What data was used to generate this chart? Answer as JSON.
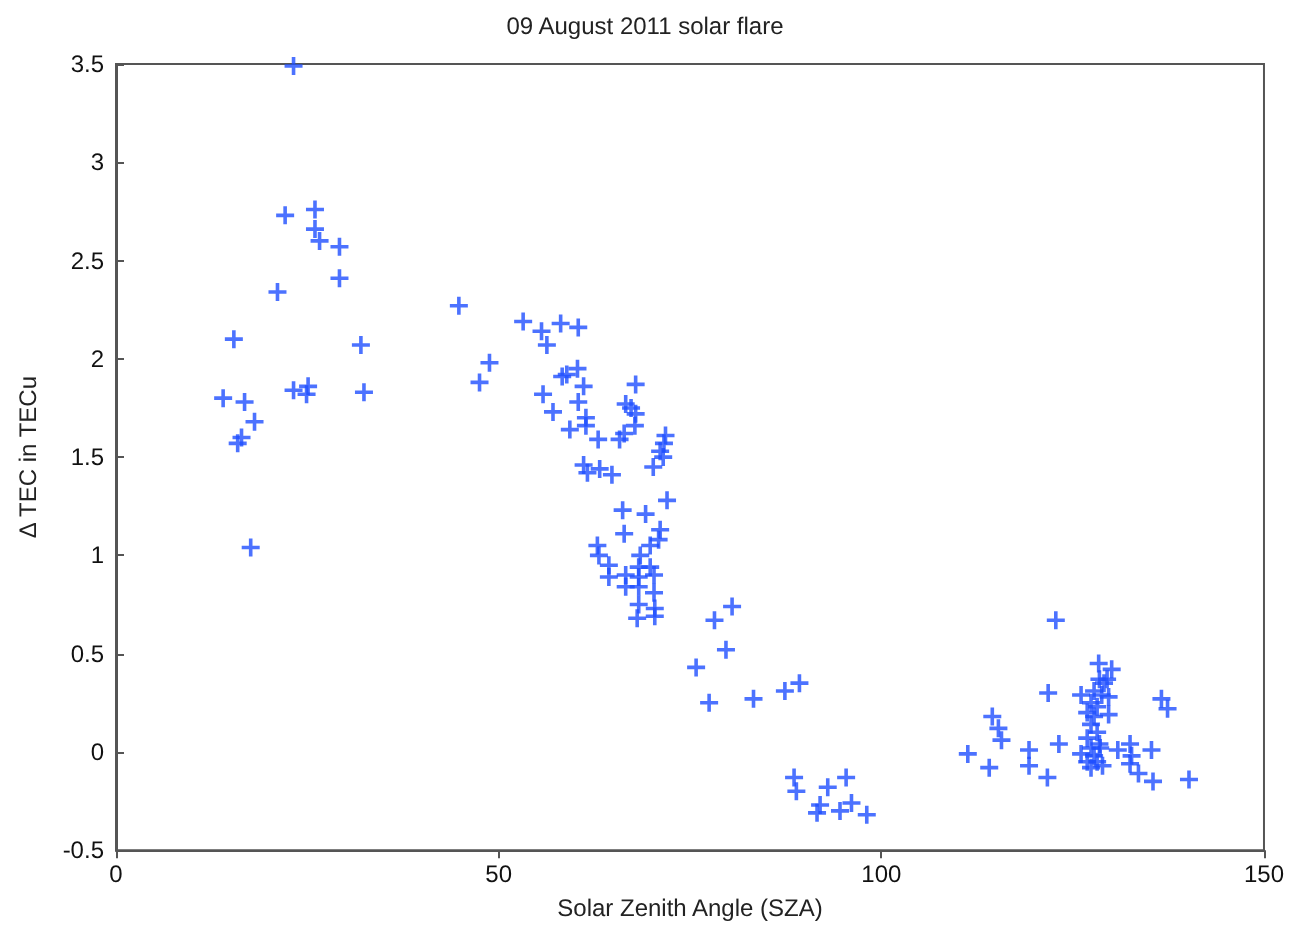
{
  "chart_data": {
    "type": "scatter",
    "title": "09 August 2011 solar flare",
    "xlabel": "Solar Zenith Angle (SZA)",
    "ylabel": "Δ TEC in TECu",
    "marker": "cross",
    "xlim": [
      0,
      150
    ],
    "xticks": [
      0,
      50,
      100,
      150
    ],
    "ylim": [
      -0.5,
      3.5
    ],
    "yticks": [
      -0.5,
      0,
      0.5,
      1,
      1.5,
      2,
      2.5,
      3,
      3.5
    ],
    "series": [
      {
        "color": "#1f4fff",
        "x": [
          23.2,
          22.1,
          26.0,
          26.0,
          26.6,
          29.2,
          29.2,
          21.1,
          15.4,
          32.0,
          23.2,
          25.1,
          24.9,
          32.4,
          14.0,
          16.8,
          18.1,
          16.4,
          15.9,
          17.6,
          44.8,
          53.2,
          55.6,
          58.1,
          60.4,
          56.3,
          48.8,
          47.5,
          60.3,
          58.3,
          58.9,
          61.1,
          67.9,
          55.8,
          60.4,
          66.6,
          67.3,
          67.9,
          57.1,
          61.4,
          61.4,
          59.3,
          67.8,
          66.4,
          65.8,
          63.0,
          71.8,
          71.6,
          71.1,
          71.5,
          70.2,
          61.1,
          61.6,
          63.2,
          64.8,
          72.0,
          66.2,
          69.2,
          66.4,
          71.1,
          70.9,
          69.8,
          62.9,
          63.1,
          68.5,
          64.4,
          68.3,
          69.8,
          64.4,
          66.6,
          68.3,
          70.3,
          66.6,
          68.3,
          70.3,
          68.3,
          70.4,
          68.1,
          70.4,
          75.8,
          80.5,
          78.2,
          79.7,
          77.5,
          83.3,
          87.4,
          89.3,
          88.6,
          88.9,
          93.0,
          95.4,
          96.1,
          92.0,
          91.6,
          94.6,
          98.1,
          122.8,
          128.4,
          130.1,
          121.8,
          126.1,
          114.5,
          115.3,
          115.7,
          111.3,
          114.1,
          119.3,
          119.3,
          121.7,
          123.2,
          136.6,
          137.4,
          130.9,
          132.5,
          132.7,
          135.3,
          132.5,
          133.6,
          135.5,
          140.2,
          128.5,
          129.1,
          129.5,
          127.8,
          128.8,
          129.7,
          127.4,
          128.2,
          126.9,
          127.8,
          129.7,
          127.4,
          128.2,
          126.9,
          128.5,
          127.4,
          126.1,
          127.8,
          128.6,
          126.9,
          128.2,
          127.4,
          128.9
        ],
        "values": [
          3.49,
          2.73,
          2.76,
          2.66,
          2.6,
          2.57,
          2.41,
          2.34,
          2.1,
          2.07,
          1.84,
          1.86,
          1.82,
          1.83,
          1.8,
          1.78,
          1.68,
          1.6,
          1.57,
          1.04,
          2.27,
          2.19,
          2.14,
          2.18,
          2.16,
          2.07,
          1.98,
          1.88,
          1.95,
          1.91,
          1.92,
          1.86,
          1.87,
          1.82,
          1.78,
          1.77,
          1.75,
          1.72,
          1.73,
          1.7,
          1.66,
          1.64,
          1.66,
          1.62,
          1.59,
          1.59,
          1.61,
          1.57,
          1.53,
          1.5,
          1.45,
          1.46,
          1.42,
          1.44,
          1.41,
          1.28,
          1.23,
          1.21,
          1.11,
          1.13,
          1.08,
          1.05,
          1.05,
          1.0,
          1.0,
          0.95,
          0.94,
          0.94,
          0.89,
          0.9,
          0.89,
          0.9,
          0.84,
          0.84,
          0.81,
          0.75,
          0.73,
          0.68,
          0.69,
          0.43,
          0.74,
          0.67,
          0.52,
          0.25,
          0.27,
          0.31,
          0.35,
          -0.13,
          -0.2,
          -0.18,
          -0.13,
          -0.26,
          -0.27,
          -0.31,
          -0.3,
          -0.32,
          0.67,
          0.45,
          0.42,
          0.3,
          0.29,
          0.18,
          0.12,
          0.06,
          -0.01,
          -0.08,
          0.01,
          -0.07,
          -0.13,
          0.04,
          0.27,
          0.22,
          0.01,
          0.04,
          -0.02,
          0.01,
          -0.06,
          -0.11,
          -0.15,
          -0.14,
          0.37,
          0.35,
          0.37,
          0.31,
          0.29,
          0.28,
          0.25,
          0.23,
          0.2,
          0.18,
          0.19,
          0.14,
          0.1,
          0.07,
          0.04,
          0.02,
          -0.01,
          -0.02,
          0.02,
          -0.05,
          -0.05,
          -0.08,
          -0.07
        ]
      }
    ]
  }
}
